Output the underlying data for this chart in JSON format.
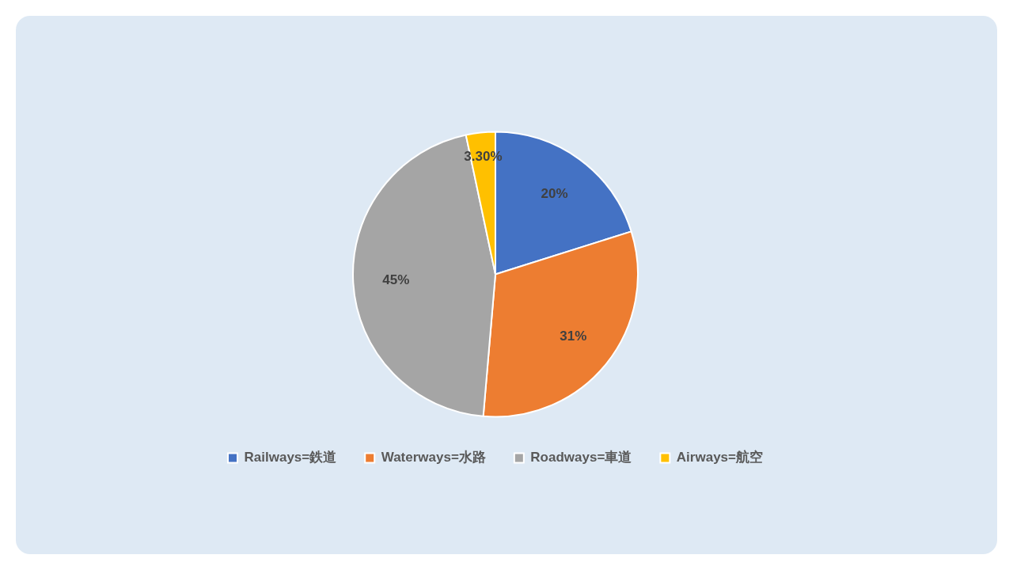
{
  "chart_data": {
    "type": "pie",
    "categories": [
      "Railways=鉄道",
      "Waterways=水路",
      "Roadways=車道",
      "Airways=航空"
    ],
    "values": [
      20,
      31,
      45,
      3.3
    ],
    "colors": [
      "#4472c4",
      "#ed7d31",
      "#a5a5a5",
      "#ffc000"
    ],
    "value_labels": [
      "20%",
      "31%",
      "45%",
      "3.30%"
    ],
    "legend": "bottom"
  }
}
